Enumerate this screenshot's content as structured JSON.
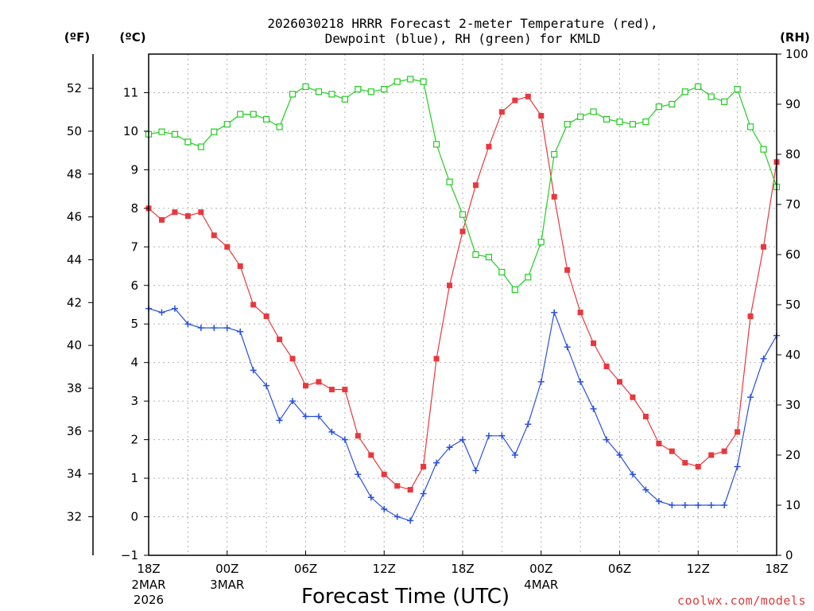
{
  "chart_data": {
    "type": "line",
    "title_line1": "2026030218 HRRR Forecast 2-meter Temperature (red),",
    "title_line2": "Dewpoint (blue), RH (green) for KMLD",
    "xlabel": "Forecast Time (UTC)",
    "credit": "coolwx.com/models",
    "unit_labels": {
      "fahrenheit": "(ºF)",
      "celsius": "(ºC)",
      "rh": "(RH)"
    },
    "x_ticks": [
      {
        "hour": 0,
        "label": "18Z",
        "sub1": "2MAR",
        "sub2": "2026"
      },
      {
        "hour": 6,
        "label": "00Z",
        "sub1": "3MAR",
        "sub2": ""
      },
      {
        "hour": 12,
        "label": "06Z",
        "sub1": "",
        "sub2": ""
      },
      {
        "hour": 18,
        "label": "12Z",
        "sub1": "",
        "sub2": ""
      },
      {
        "hour": 24,
        "label": "18Z",
        "sub1": "",
        "sub2": ""
      },
      {
        "hour": 30,
        "label": "00Z",
        "sub1": "4MAR",
        "sub2": ""
      },
      {
        "hour": 36,
        "label": "06Z",
        "sub1": "",
        "sub2": ""
      },
      {
        "hour": 42,
        "label": "12Z",
        "sub1": "",
        "sub2": ""
      },
      {
        "hour": 48,
        "label": "18Z",
        "sub1": "",
        "sub2": ""
      }
    ],
    "xlim": [
      0,
      48
    ],
    "ylim_celsius": [
      -1,
      12
    ],
    "ylim_rh": [
      0,
      100
    ],
    "celsius_ticks": [
      -1,
      0,
      1,
      2,
      3,
      4,
      5,
      6,
      7,
      8,
      9,
      10,
      11
    ],
    "fahrenheit_ticks": [
      32,
      34,
      36,
      38,
      40,
      42,
      44,
      46,
      48,
      50,
      52
    ],
    "rh_ticks": [
      0,
      10,
      20,
      30,
      40,
      50,
      60,
      70,
      80,
      90,
      100
    ],
    "series": [
      {
        "name": "Temperature",
        "axis": "celsius",
        "color": "#e8383d",
        "marker": "filled-square",
        "values": [
          8.0,
          7.7,
          7.9,
          7.8,
          7.9,
          7.3,
          7.0,
          6.5,
          5.5,
          5.2,
          4.6,
          4.1,
          3.4,
          3.5,
          3.3,
          3.3,
          2.1,
          1.6,
          1.1,
          0.8,
          0.7,
          1.3,
          4.1,
          6.0,
          7.4,
          8.6,
          9.6,
          10.5,
          10.8,
          10.9,
          10.4,
          8.3,
          6.4,
          5.3,
          4.5,
          3.9,
          3.5,
          3.1,
          2.6,
          1.9,
          1.7,
          1.4,
          1.3,
          1.6,
          1.7,
          2.2,
          5.2,
          7.0,
          9.2
        ]
      },
      {
        "name": "Dewpoint",
        "axis": "celsius",
        "color": "#2a50e0",
        "marker": "plus",
        "values": [
          5.4,
          5.3,
          5.4,
          5.0,
          4.9,
          4.9,
          4.9,
          4.8,
          3.8,
          3.4,
          2.5,
          3.0,
          2.6,
          2.6,
          2.2,
          2.0,
          1.1,
          0.5,
          0.2,
          0.0,
          -0.1,
          0.6,
          1.4,
          1.8,
          2.0,
          1.2,
          2.1,
          2.1,
          1.6,
          2.4,
          3.5,
          5.3,
          4.4,
          3.5,
          2.8,
          2.0,
          1.6,
          1.1,
          0.7,
          0.4,
          0.3,
          0.3,
          0.3,
          0.3,
          0.3,
          1.3,
          3.1,
          4.1,
          4.7
        ]
      },
      {
        "name": "RH",
        "axis": "rh",
        "color": "#22cc22",
        "marker": "open-square",
        "values": [
          84,
          84.5,
          84,
          82.5,
          81.5,
          84.5,
          86,
          88,
          88,
          87,
          85.5,
          92,
          93.5,
          92.5,
          92,
          91,
          93,
          92.5,
          93,
          94.5,
          95,
          94.5,
          82,
          74.5,
          68,
          60,
          59.5,
          56.5,
          53,
          55.5,
          62.5,
          80,
          86,
          87.5,
          88.5,
          87,
          86.5,
          86,
          86.5,
          89.5,
          90,
          92.5,
          93.5,
          91.5,
          90.5,
          93,
          85.5,
          81,
          73.5
        ]
      }
    ]
  }
}
